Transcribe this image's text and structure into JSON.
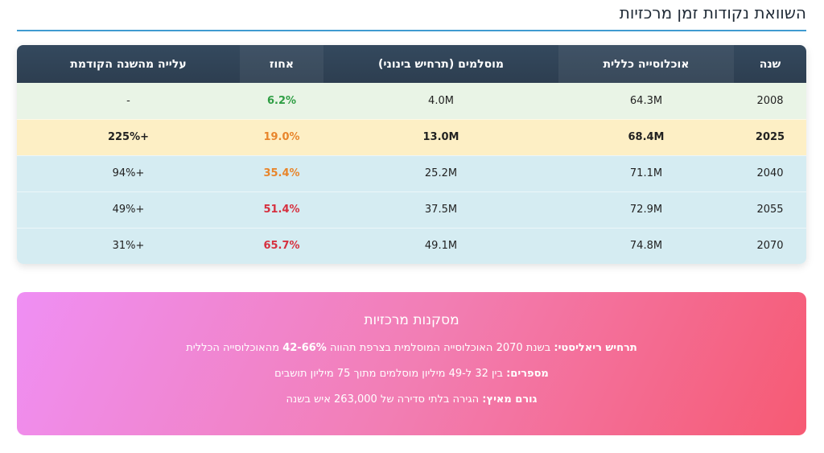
{
  "header": {
    "title": "השוואת נקודות זמן מרכזיות"
  },
  "table": {
    "columns": [
      "שנה",
      "אוכלוסייה כללית",
      "מוסלמים (תרחיש בינוני)",
      "אחוז",
      "עלייה מהשנה הקודמת"
    ],
    "rows": [
      {
        "year": "2008",
        "population": "64.3M",
        "muslims": "4.0M",
        "percent": "6.2%",
        "increase": "-"
      },
      {
        "year": "2025",
        "population": "68.4M",
        "muslims": "13.0M",
        "percent": "19.0%",
        "increase": "+225%"
      },
      {
        "year": "2040",
        "population": "71.1M",
        "muslims": "25.2M",
        "percent": "35.4%",
        "increase": "+94%"
      },
      {
        "year": "2055",
        "population": "72.9M",
        "muslims": "37.5M",
        "percent": "51.4%",
        "increase": "+49%"
      },
      {
        "year": "2070",
        "population": "74.8M",
        "muslims": "49.1M",
        "percent": "65.7%",
        "increase": "+31%"
      }
    ]
  },
  "conclusions": {
    "title": "מסקנות מרכזיות",
    "line1_label": "תרחיש ריאליסטי:",
    "line1_text_a": " בשנת 2070 האוכלוסייה המוסלמית בצרפת תהווה ",
    "line1_bold": "42-66%",
    "line1_text_b": " מהאוכלוסייה הכללית",
    "line2_label": "מספרים:",
    "line2_text": " בין 32 ל-49 מיליון מוסלמים מתוך 75 מיליון תושבים",
    "line3_label": "גורם מאיץ:",
    "line3_text": " הגירה בלתי סדירה של 263,000 איש בשנה"
  },
  "colors": {
    "header_bg": "#2d3e50",
    "accent_rule": "#3f9bd1",
    "row_baseline": "#e9f4e6",
    "row_current": "#fdefc5",
    "row_projection": "#d5ecf2",
    "pct_green": "#2f9e44",
    "pct_orange": "#e8852b",
    "pct_red": "#d6303f",
    "conclusion_gradient_start": "#ef8ff4",
    "conclusion_gradient_end": "#f65a73"
  }
}
